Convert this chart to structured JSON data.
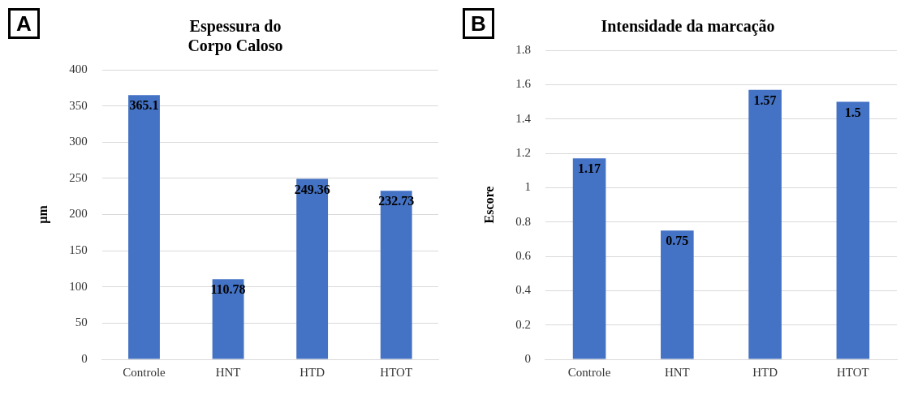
{
  "chart_data": [
    {
      "type": "bar",
      "title": "Espessura do\nCorpo Caloso",
      "ylabel": "µm",
      "annotations": [
        "A"
      ],
      "categories": [
        "Controle",
        "HNT",
        "HTD",
        "HTOT"
      ],
      "values": [
        365.1,
        110.78,
        249.36,
        232.73
      ],
      "color": "#4472c4",
      "ylim": [
        0,
        400
      ],
      "yticks": [
        0,
        50,
        100,
        150,
        200,
        250,
        300,
        350,
        400
      ],
      "grid": "y",
      "legend": false,
      "data_labels": true
    },
    {
      "type": "bar",
      "title": "Intensidade da marcação",
      "ylabel": "Escore",
      "annotations": [
        "B"
      ],
      "categories": [
        "Controle",
        "HNT",
        "HTD",
        "HTOT"
      ],
      "values": [
        1.17,
        0.75,
        1.57,
        1.5
      ],
      "color": "#4472c4",
      "ylim": [
        0,
        1.8
      ],
      "yticks": [
        0,
        0.2,
        0.4,
        0.6,
        0.8,
        1,
        1.2,
        1.4,
        1.6,
        1.8
      ],
      "grid": "y",
      "legend": false,
      "data_labels": true
    }
  ]
}
